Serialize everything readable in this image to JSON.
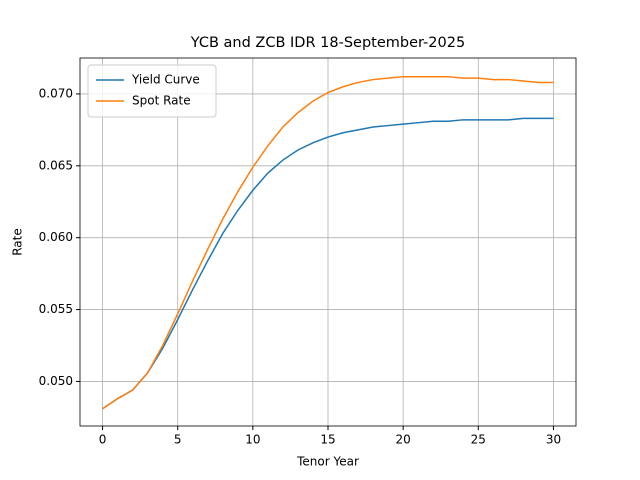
{
  "chart_data": {
    "type": "line",
    "title": "YCB and ZCB IDR 18-September-2025",
    "xlabel": "Tenor Year",
    "ylabel": "Rate",
    "x": [
      0,
      1,
      2,
      3,
      4,
      5,
      6,
      7,
      8,
      9,
      10,
      11,
      12,
      13,
      14,
      15,
      16,
      17,
      18,
      19,
      20,
      21,
      22,
      23,
      24,
      25,
      26,
      27,
      28,
      29,
      30
    ],
    "series": [
      {
        "name": "Yield Curve",
        "color": "#1f77b4",
        "values": [
          0.0481,
          0.0488,
          0.0494,
          0.0506,
          0.0523,
          0.0543,
          0.0564,
          0.0584,
          0.0603,
          0.0619,
          0.0633,
          0.0645,
          0.0654,
          0.0661,
          0.0666,
          0.067,
          0.0673,
          0.0675,
          0.0677,
          0.0678,
          0.0679,
          0.068,
          0.0681,
          0.0681,
          0.0682,
          0.0682,
          0.0682,
          0.0682,
          0.0683,
          0.0683,
          0.0683
        ]
      },
      {
        "name": "Spot Rate",
        "color": "#ff7f0e",
        "values": [
          0.0481,
          0.0488,
          0.0494,
          0.0506,
          0.0525,
          0.0547,
          0.057,
          0.0592,
          0.0613,
          0.0632,
          0.0649,
          0.0664,
          0.0677,
          0.0687,
          0.0695,
          0.0701,
          0.0705,
          0.0708,
          0.071,
          0.0711,
          0.0712,
          0.0712,
          0.0712,
          0.0712,
          0.0711,
          0.0711,
          0.071,
          0.071,
          0.0709,
          0.0708,
          0.0708
        ]
      }
    ],
    "xlim": [
      -1.5,
      31.5
    ],
    "xticks": [
      0,
      5,
      10,
      15,
      20,
      25,
      30
    ],
    "ylim": [
      0.0469,
      0.0725
    ],
    "yticks": [
      {
        "value": 0.05,
        "label": "0.050"
      },
      {
        "value": 0.055,
        "label": "0.055"
      },
      {
        "value": 0.06,
        "label": "0.060"
      },
      {
        "value": 0.065,
        "label": "0.065"
      },
      {
        "value": 0.07,
        "label": "0.070"
      }
    ],
    "grid": true,
    "legend": "upper-left"
  }
}
